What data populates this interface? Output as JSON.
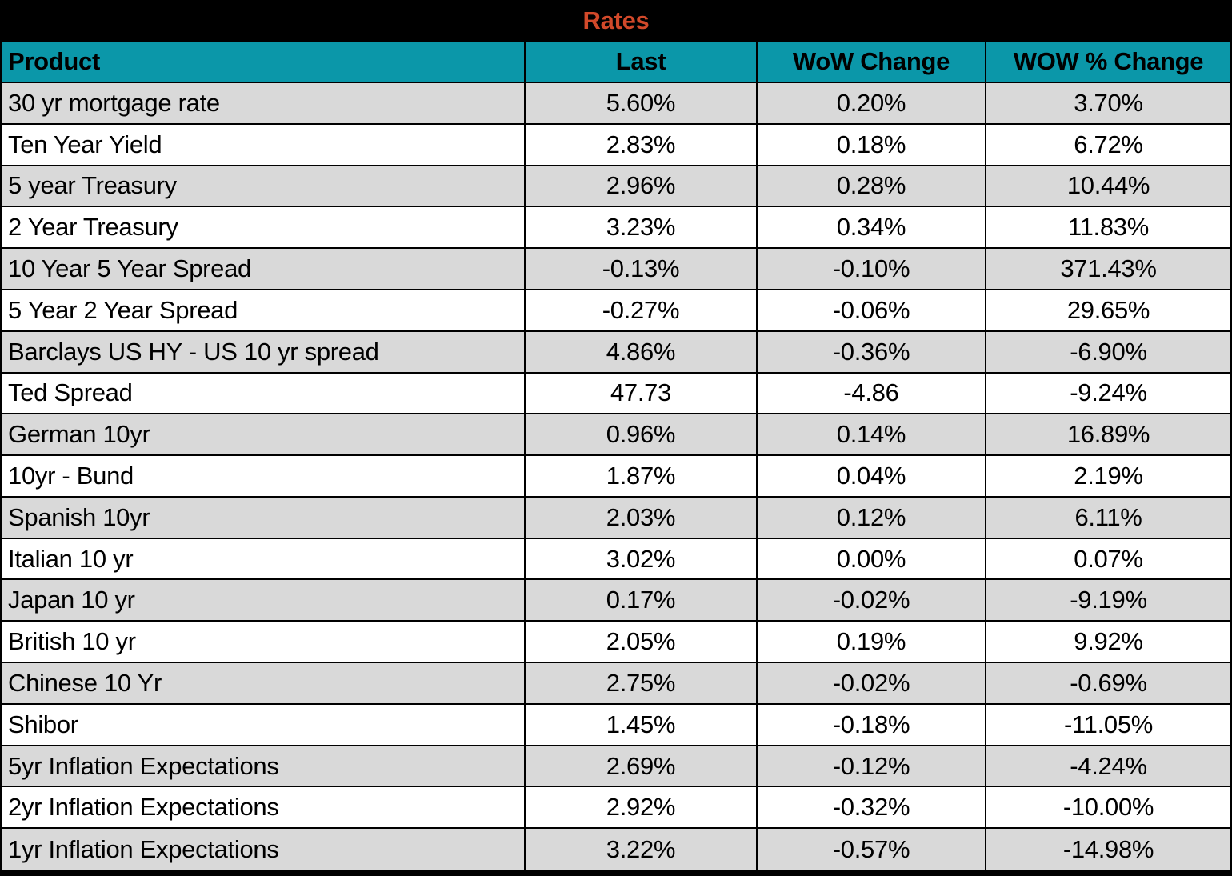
{
  "title": "Rates",
  "colors": {
    "title_bg": "#000000",
    "title_text": "#D2492A",
    "header_bg": "#0B97A9",
    "header_text": "#000000",
    "row_bg": "#FFFFFF",
    "row_alt_bg": "#D9D9D9",
    "border": "#000000"
  },
  "chart_data": {
    "type": "table",
    "title": "Rates",
    "columns": [
      "Product",
      "Last",
      "WoW Change",
      "WOW % Change"
    ],
    "rows": [
      {
        "product": "30 yr mortgage rate",
        "last": "5.60%",
        "wow_change": "0.20%",
        "wow_pct_change": "3.70%"
      },
      {
        "product": "Ten Year Yield",
        "last": "2.83%",
        "wow_change": "0.18%",
        "wow_pct_change": "6.72%"
      },
      {
        "product": "5 year Treasury",
        "last": "2.96%",
        "wow_change": "0.28%",
        "wow_pct_change": "10.44%"
      },
      {
        "product": "2 Year Treasury",
        "last": "3.23%",
        "wow_change": "0.34%",
        "wow_pct_change": "11.83%"
      },
      {
        "product": "10 Year 5 Year Spread",
        "last": "-0.13%",
        "wow_change": "-0.10%",
        "wow_pct_change": "371.43%"
      },
      {
        "product": "5 Year 2 Year Spread",
        "last": "-0.27%",
        "wow_change": "-0.06%",
        "wow_pct_change": "29.65%"
      },
      {
        "product": "Barclays US HY - US 10 yr spread",
        "last": "4.86%",
        "wow_change": "-0.36%",
        "wow_pct_change": "-6.90%"
      },
      {
        "product": "Ted Spread",
        "last": "47.73",
        "wow_change": "-4.86",
        "wow_pct_change": "-9.24%"
      },
      {
        "product": "German 10yr",
        "last": "0.96%",
        "wow_change": "0.14%",
        "wow_pct_change": "16.89%"
      },
      {
        "product": "10yr - Bund",
        "last": "1.87%",
        "wow_change": "0.04%",
        "wow_pct_change": "2.19%"
      },
      {
        "product": "Spanish 10yr",
        "last": "2.03%",
        "wow_change": "0.12%",
        "wow_pct_change": "6.11%"
      },
      {
        "product": "Italian 10 yr",
        "last": "3.02%",
        "wow_change": "0.00%",
        "wow_pct_change": "0.07%"
      },
      {
        "product": "Japan 10 yr",
        "last": "0.17%",
        "wow_change": "-0.02%",
        "wow_pct_change": "-9.19%"
      },
      {
        "product": "British 10 yr",
        "last": "2.05%",
        "wow_change": "0.19%",
        "wow_pct_change": "9.92%"
      },
      {
        "product": "Chinese 10 Yr",
        "last": "2.75%",
        "wow_change": "-0.02%",
        "wow_pct_change": "-0.69%"
      },
      {
        "product": "Shibor",
        "last": "1.45%",
        "wow_change": "-0.18%",
        "wow_pct_change": "-11.05%"
      },
      {
        "product": "5yr Inflation Expectations",
        "last": "2.69%",
        "wow_change": "-0.12%",
        "wow_pct_change": "-4.24%"
      },
      {
        "product": "2yr Inflation Expectations",
        "last": "2.92%",
        "wow_change": "-0.32%",
        "wow_pct_change": "-10.00%"
      },
      {
        "product": "1yr Inflation Expectations",
        "last": "3.22%",
        "wow_change": "-0.57%",
        "wow_pct_change": "-14.98%"
      }
    ]
  }
}
